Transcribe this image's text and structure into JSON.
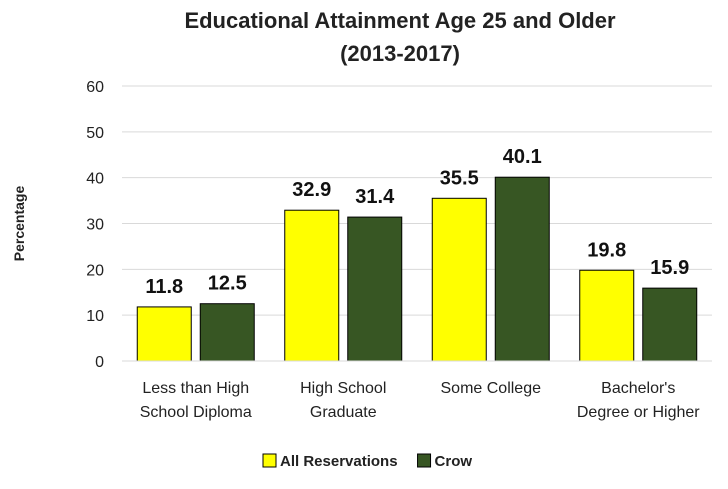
{
  "chart_data": {
    "type": "bar",
    "title_lines": [
      "Educational Attainment Age 25 and Older",
      "(2013-2017)"
    ],
    "ylabel": "Percentage",
    "xlabel": "",
    "ylim": [
      0,
      60
    ],
    "yticks": [
      0,
      10,
      20,
      30,
      40,
      50,
      60
    ],
    "grid": true,
    "legend_position": "bottom",
    "categories": [
      [
        "Less than High",
        "School Diploma"
      ],
      [
        "High School",
        "Graduate"
      ],
      [
        "Some College"
      ],
      [
        "Bachelor's",
        "Degree or Higher"
      ]
    ],
    "series": [
      {
        "name": "All Reservations",
        "color": "#ffff00",
        "values": [
          11.8,
          32.9,
          35.5,
          19.8
        ]
      },
      {
        "name": "Crow",
        "color": "#375623",
        "values": [
          12.5,
          31.4,
          40.1,
          15.9
        ]
      }
    ]
  }
}
